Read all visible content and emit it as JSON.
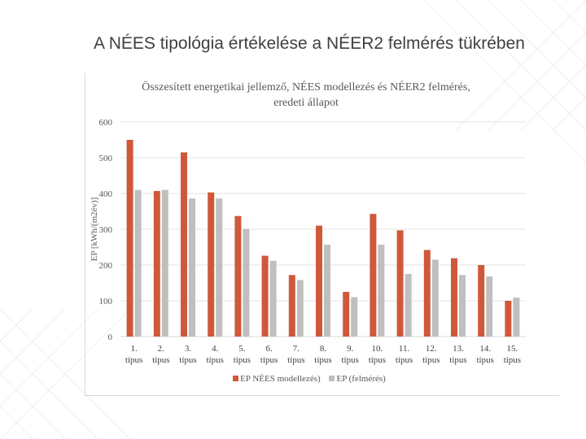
{
  "slide": {
    "title": "A NÉES tipológia értékelése a NÉER2 felmérés tükrében"
  },
  "chart_data": {
    "type": "bar",
    "title": "Összesített energetikai jellemző, NÉES modellezés és NÉER2 felmérés, eredeti állapot",
    "xlabel": "",
    "ylabel": "EP [kWh/(m2év)]",
    "ylim": [
      0,
      600
    ],
    "yticks": [
      "0",
      "100",
      "200",
      "300",
      "400",
      "500",
      "600"
    ],
    "grid": true,
    "legend_position": "bottom",
    "categories": [
      [
        "1.",
        "típus"
      ],
      [
        "2.",
        "típus"
      ],
      [
        "3.",
        "típus"
      ],
      [
        "4.",
        "típus"
      ],
      [
        "5.",
        "típus"
      ],
      [
        "6.",
        "típus"
      ],
      [
        "7.",
        "típus"
      ],
      [
        "8.",
        "típus"
      ],
      [
        "9.",
        "típus"
      ],
      [
        "10.",
        "típus"
      ],
      [
        "11.",
        "típus"
      ],
      [
        "12.",
        "típus"
      ],
      [
        "13.",
        "típus"
      ],
      [
        "14.",
        "típus"
      ],
      [
        "15.",
        "típus"
      ]
    ],
    "series": [
      {
        "name": "EP NÉES modellezés)",
        "color": "#d0583a",
        "values": [
          550,
          407,
          515,
          403,
          337,
          226,
          172,
          310,
          125,
          343,
          297,
          242,
          219,
          200,
          100
        ]
      },
      {
        "name": "EP (felmérés)",
        "color": "#bfbfbf",
        "values": [
          410,
          410,
          386,
          386,
          301,
          212,
          158,
          257,
          110,
          257,
          175,
          215,
          172,
          168,
          109
        ]
      }
    ]
  }
}
